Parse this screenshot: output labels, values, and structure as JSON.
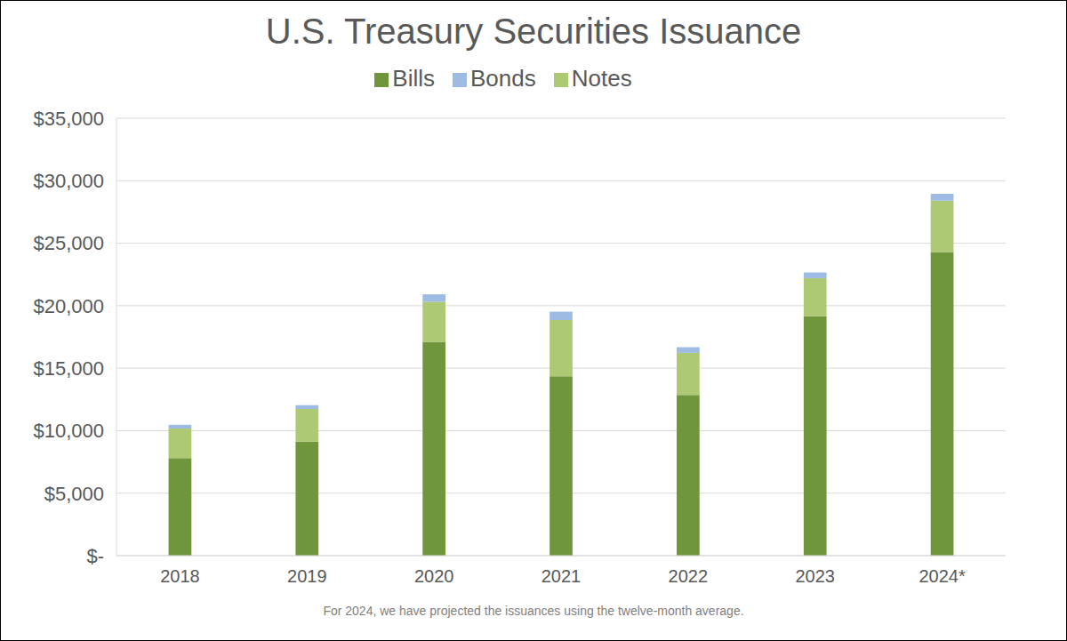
{
  "chart_data": {
    "type": "bar",
    "title": "U.S. Treasury Securities Issuance",
    "footnote": "For 2024, we have projected the issuances using the twelve-month average.",
    "categories": [
      "2018",
      "2019",
      "2020",
      "2021",
      "2022",
      "2023",
      "2024*"
    ],
    "series": [
      {
        "name": "Bills",
        "color": "#70963c",
        "values": [
          7800,
          9120,
          17100,
          14360,
          12860,
          19150,
          24300
        ]
      },
      {
        "name": "Notes",
        "color": "#aec974",
        "values": [
          2370,
          2620,
          3210,
          4490,
          3370,
          3050,
          4100
        ]
      },
      {
        "name": "Bonds",
        "color": "#9dbbe3",
        "values": [
          300,
          300,
          600,
          670,
          450,
          460,
          550
        ]
      }
    ],
    "stacked": true,
    "ylim": [
      0,
      35000
    ],
    "yticks": [
      {
        "value": 0,
        "label": "$-"
      },
      {
        "value": 5000,
        "label": "$5,000"
      },
      {
        "value": 10000,
        "label": "$10,000"
      },
      {
        "value": 15000,
        "label": "$15,000"
      },
      {
        "value": 20000,
        "label": "$20,000"
      },
      {
        "value": 25000,
        "label": "$25,000"
      },
      {
        "value": 30000,
        "label": "$30,000"
      },
      {
        "value": 35000,
        "label": "$35,000"
      }
    ],
    "grid": true,
    "legend": "top"
  }
}
